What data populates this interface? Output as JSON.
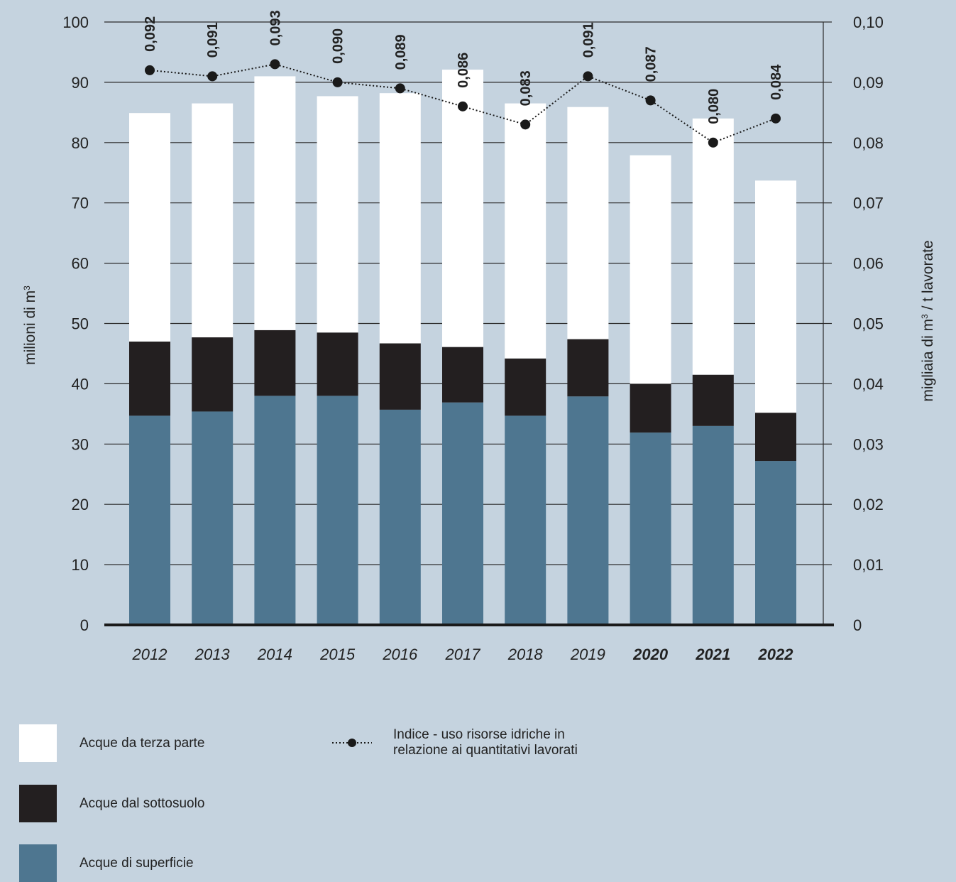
{
  "chart_data": {
    "type": "bar",
    "stacked": true,
    "categories": [
      "2012",
      "2013",
      "2014",
      "2015",
      "2016",
      "2017",
      "2018",
      "2019",
      "2020",
      "2021",
      "2022"
    ],
    "bold_categories": [
      "2020",
      "2021",
      "2022"
    ],
    "series": [
      {
        "name": "Acque di superficie",
        "color": "#4e7690",
        "values": [
          34.7,
          35.4,
          38.0,
          38.0,
          35.7,
          36.9,
          34.7,
          37.9,
          31.9,
          33.0,
          27.2
        ]
      },
      {
        "name": "Acque dal sottosuolo",
        "color": "#231f20",
        "values": [
          12.3,
          12.3,
          10.9,
          10.5,
          11.0,
          9.2,
          9.5,
          9.5,
          8.1,
          8.5,
          8.0
        ]
      },
      {
        "name": "Acque da terza parte",
        "color": "#ffffff",
        "values": [
          37.9,
          38.8,
          42.1,
          39.2,
          41.5,
          46.0,
          42.3,
          38.5,
          37.9,
          42.5,
          38.5
        ]
      }
    ],
    "line_series": {
      "name": "Indice - uso risorse idriche in relazione ai quantitativi lavorati",
      "values": [
        0.092,
        0.091,
        0.093,
        0.09,
        0.089,
        0.086,
        0.083,
        0.091,
        0.087,
        0.08,
        0.084
      ],
      "labels": [
        "0,092",
        "0,091",
        "0,093",
        "0,090",
        "0,089",
        "0,086",
        "0,083",
        "0,091",
        "0,087",
        "0,080",
        "0,084"
      ],
      "color": "#1a1a1a"
    },
    "ylabel": "milioni di m³",
    "ylabel_parts": [
      "milioni di m",
      "3"
    ],
    "y2label_parts": [
      "migliaia di m",
      "3",
      " / t lavorate"
    ],
    "ylim": [
      0,
      100
    ],
    "y2lim": [
      0,
      0.1
    ],
    "yticks": [
      "0",
      "10",
      "20",
      "30",
      "40",
      "50",
      "60",
      "70",
      "80",
      "90",
      "100"
    ],
    "y2ticks": [
      "0",
      "0,01",
      "0,02",
      "0,03",
      "0,04",
      "0,05",
      "0,06",
      "0,07",
      "0,08",
      "0,09",
      "0,10"
    ],
    "grid": true,
    "legend_position": "bottom"
  },
  "legend": {
    "items": [
      {
        "label": "Acque da terza parte",
        "color": "#ffffff"
      },
      {
        "label": "Acque dal sottosuolo",
        "color": "#231f20"
      },
      {
        "label": "Acque di superficie",
        "color": "#4e7690"
      }
    ],
    "line_label": "Indice - uso risorse idriche in relazione ai quantitativi lavorati"
  }
}
